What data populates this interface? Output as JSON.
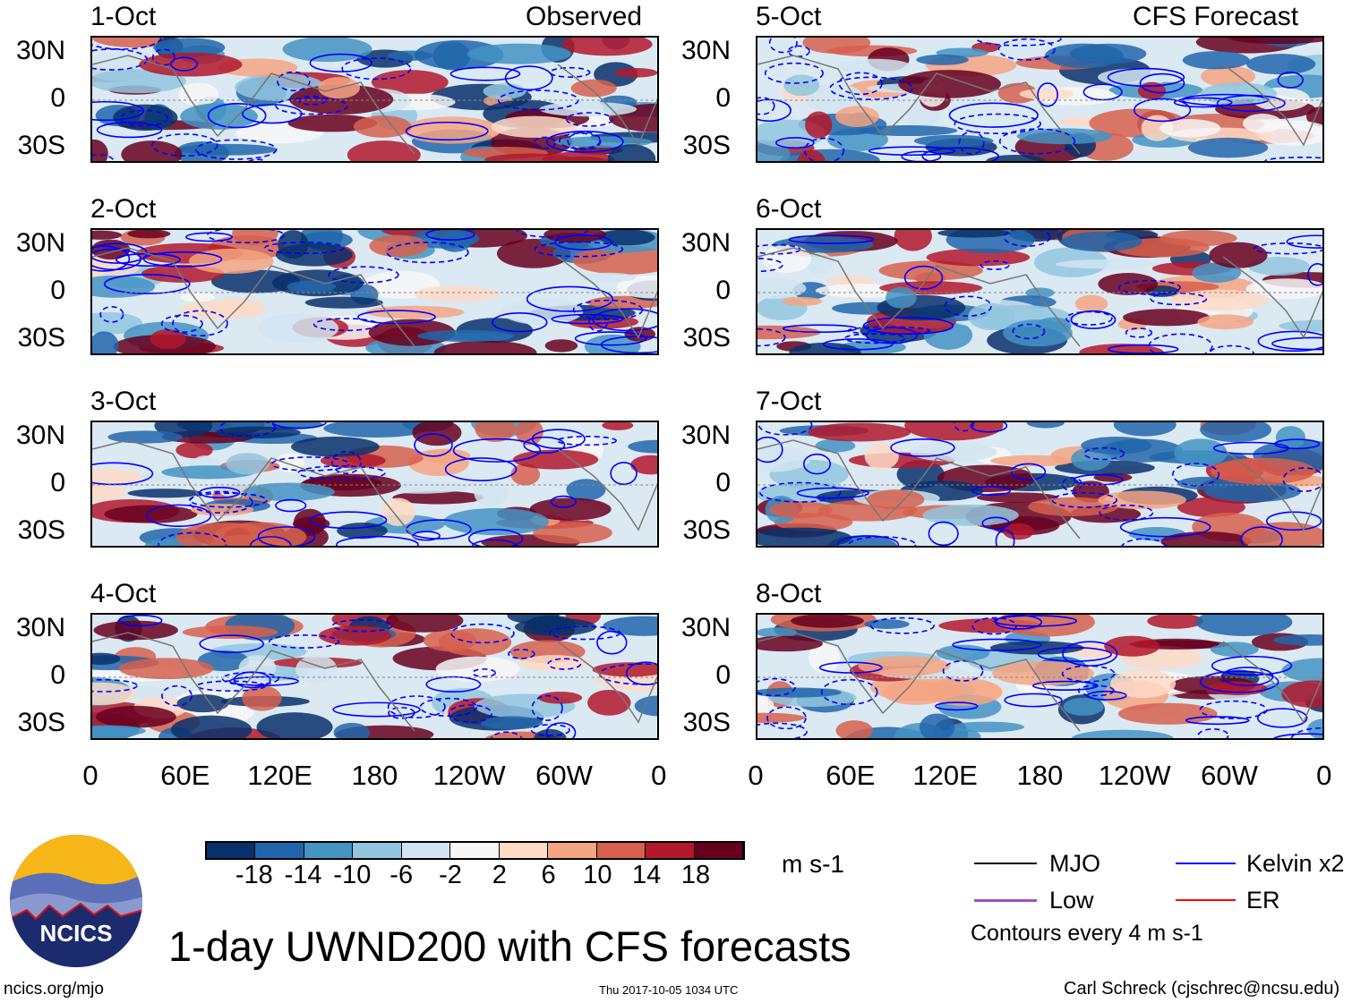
{
  "panels_left": {
    "header": "Observed",
    "dates": [
      "1-Oct",
      "2-Oct",
      "3-Oct",
      "4-Oct"
    ]
  },
  "panels_right": {
    "header": "CFS Forecast",
    "dates": [
      "5-Oct",
      "6-Oct",
      "7-Oct",
      "8-Oct"
    ]
  },
  "chart_data": {
    "type": "heatmap",
    "title": "1-day UWND200 with CFS forecasts",
    "lat_ticks": [
      "30N",
      "0",
      "30S"
    ],
    "lon_ticks": [
      "0",
      "60E",
      "120E",
      "180",
      "120W",
      "60W",
      "0"
    ],
    "colorbar": {
      "units": "m s-1",
      "levels": [
        "-18",
        "-14",
        "-10",
        "-6",
        "-2",
        "2",
        "6",
        "10",
        "14",
        "18"
      ],
      "colors": [
        "#08306b",
        "#2166ac",
        "#4393c3",
        "#92c5de",
        "#d1e5f0",
        "#f7f7f7",
        "#fddbc7",
        "#f4a582",
        "#d6604d",
        "#b2182b",
        "#67001f"
      ]
    },
    "legend": [
      {
        "label": "MJO",
        "color": "#000000"
      },
      {
        "label": "Kelvin x2",
        "color": "#0000ff"
      },
      {
        "label": "Low",
        "color": "#a050c8"
      },
      {
        "label": "ER",
        "color": "#ff0000"
      }
    ],
    "contour_note": "Contours every 4 m s-1"
  },
  "footer": {
    "site": "ncics.org/mjo",
    "timestamp": "Thu 2017-10-05 1034 UTC",
    "author": "Carl Schreck (cjschrec@ncsu.edu)"
  },
  "logo": {
    "text": "NCICS"
  }
}
